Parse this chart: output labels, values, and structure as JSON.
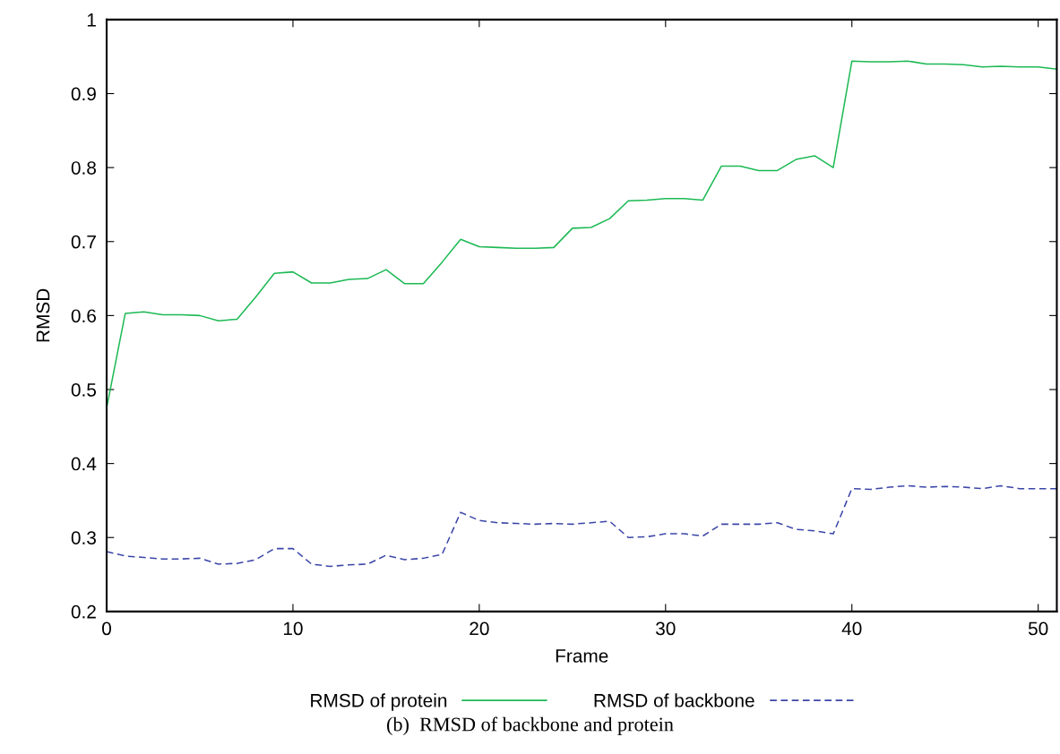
{
  "chart_data": {
    "type": "line",
    "xlabel": "Frame",
    "ylabel": "RMSD",
    "annotations": [
      "(b)  RMSD of backbone and protein"
    ],
    "x": [
      0,
      1,
      2,
      3,
      4,
      5,
      6,
      7,
      8,
      9,
      10,
      11,
      12,
      13,
      14,
      15,
      16,
      17,
      18,
      19,
      20,
      21,
      22,
      23,
      24,
      25,
      26,
      27,
      28,
      29,
      30,
      31,
      32,
      33,
      34,
      35,
      36,
      37,
      38,
      39,
      40,
      41,
      42,
      43,
      44,
      45,
      46,
      47,
      48,
      49,
      50,
      51
    ],
    "series": [
      {
        "name": "RMSD of protein",
        "color": "#1db954",
        "line_style": "solid",
        "values": [
          0.475,
          0.603,
          0.605,
          0.601,
          0.601,
          0.6,
          0.593,
          0.595,
          0.625,
          0.657,
          0.659,
          0.644,
          0.644,
          0.649,
          0.65,
          0.662,
          0.643,
          0.643,
          0.672,
          0.703,
          0.693,
          0.692,
          0.691,
          0.691,
          0.692,
          0.718,
          0.719,
          0.731,
          0.755,
          0.756,
          0.758,
          0.758,
          0.756,
          0.802,
          0.802,
          0.796,
          0.796,
          0.811,
          0.816,
          0.8,
          0.944,
          0.943,
          0.943,
          0.944,
          0.94,
          0.94,
          0.939,
          0.936,
          0.937,
          0.936,
          0.936,
          0.933
        ]
      },
      {
        "name": "RMSD of backbone",
        "color": "#3b46a8",
        "line_style": "dashed",
        "values": [
          0.281,
          0.275,
          0.273,
          0.271,
          0.271,
          0.272,
          0.264,
          0.265,
          0.27,
          0.285,
          0.285,
          0.264,
          0.261,
          0.263,
          0.264,
          0.276,
          0.27,
          0.272,
          0.277,
          0.334,
          0.323,
          0.32,
          0.319,
          0.318,
          0.319,
          0.318,
          0.32,
          0.322,
          0.3,
          0.301,
          0.305,
          0.305,
          0.302,
          0.318,
          0.318,
          0.318,
          0.32,
          0.311,
          0.309,
          0.305,
          0.366,
          0.365,
          0.368,
          0.37,
          0.368,
          0.369,
          0.368,
          0.366,
          0.37,
          0.366,
          0.366,
          0.366
        ]
      }
    ],
    "xlim": [
      0,
      51
    ],
    "xticks": [
      0,
      10,
      20,
      30,
      40,
      50
    ],
    "ylim": [
      0.2,
      1
    ],
    "yticks": [
      0.2,
      0.3,
      0.4,
      0.5,
      0.6,
      0.7,
      0.8,
      0.9,
      1
    ],
    "grid": false,
    "legend": "bottom",
    "marker": "none"
  }
}
